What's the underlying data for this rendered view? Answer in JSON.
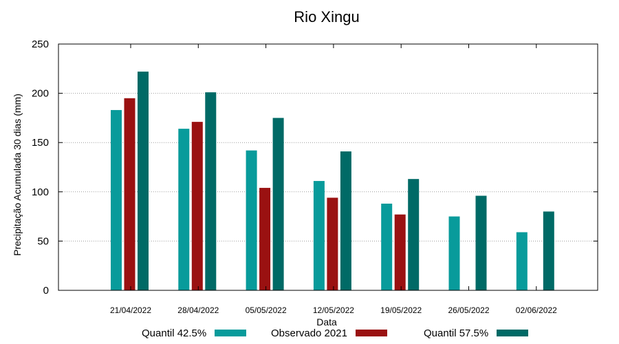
{
  "chart_data": {
    "type": "bar",
    "title": "Rio Xingu",
    "xlabel": "Data",
    "ylabel": "Precipitação Acumulada 30 dias (mm)",
    "ylim": [
      0,
      250
    ],
    "yticks": [
      0,
      50,
      100,
      150,
      200,
      250
    ],
    "grid": true,
    "legend_position": "bottom",
    "categories": [
      "21/04/2022",
      "28/04/2022",
      "05/05/2022",
      "12/05/2022",
      "19/05/2022",
      "26/05/2022",
      "02/06/2022"
    ],
    "series": [
      {
        "name": "Quantil 42.5%",
        "color": "#089b9b",
        "values": [
          183,
          164,
          142,
          111,
          88,
          75,
          59
        ]
      },
      {
        "name": "Observado 2021",
        "color": "#9a1111",
        "values": [
          195,
          171,
          104,
          94,
          77,
          null,
          null
        ]
      },
      {
        "name": "Quantil 57.5%",
        "color": "#006a66",
        "values": [
          222,
          201,
          175,
          141,
          113,
          96,
          80
        ]
      }
    ]
  }
}
